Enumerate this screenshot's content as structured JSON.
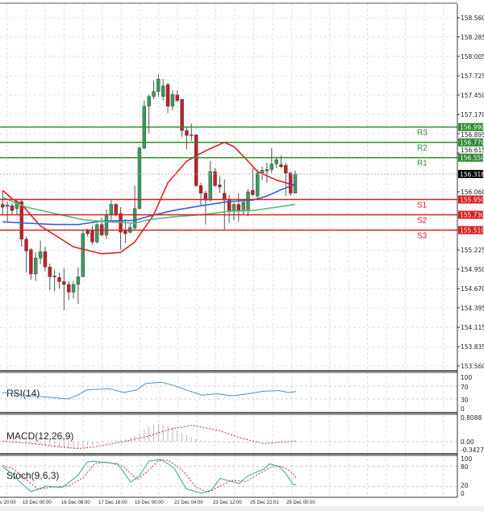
{
  "chart_data": [
    {
      "type": "candlestick",
      "price_axis": {
        "ylim": [
          153.56,
          158.56
        ],
        "ticks": [
          "158.560",
          "158.285",
          "158.005",
          "157.725",
          "157.450",
          "157.170",
          "156.895",
          "156.615",
          "156.060",
          "155.225",
          "154.950",
          "154.670",
          "154.395",
          "154.115",
          "153.835",
          "153.560"
        ]
      },
      "grid": true,
      "x_labels": [
        "c 20:00",
        "15 Dec 00:00",
        "16 Dec 08:00",
        "17 Dec 16:00",
        "19 Dec 00:00",
        "22 Dec 04:00",
        "23 Dec 12:00",
        "25 Dec 22:01",
        "29 Dec 00:00"
      ],
      "current_price": {
        "value": "156.316",
        "color": "#000000"
      },
      "levels": [
        {
          "label": "R3",
          "value": "156.990",
          "color": "#2e8b2e"
        },
        {
          "label": "R2",
          "value": "156.770",
          "color": "#2e8b2e"
        },
        {
          "label": "R1",
          "value": "156.550",
          "color": "#2e8b2e"
        },
        {
          "label": "S1",
          "value": "155.950",
          "color": "#d42020"
        },
        {
          "label": "S2",
          "value": "155.730",
          "color": "#d42020"
        },
        {
          "label": "S3",
          "value": "155.510",
          "color": "#d42020"
        }
      ],
      "candles": [
        [
          155.88,
          156.08,
          155.73,
          155.84
        ],
        [
          155.85,
          155.92,
          155.63,
          155.87
        ],
        [
          155.86,
          155.9,
          155.73,
          155.79
        ],
        [
          155.82,
          155.94,
          155.73,
          155.92
        ],
        [
          155.92,
          155.94,
          155.27,
          155.38
        ],
        [
          155.38,
          155.42,
          154.9,
          155.21
        ],
        [
          155.23,
          155.25,
          154.8,
          154.88
        ],
        [
          154.88,
          155.19,
          154.78,
          155.11
        ],
        [
          155.11,
          155.36,
          155.02,
          155.2
        ],
        [
          155.2,
          155.27,
          154.92,
          154.98
        ],
        [
          154.98,
          155.03,
          154.65,
          154.84
        ],
        [
          154.85,
          154.94,
          154.63,
          154.84
        ],
        [
          154.83,
          154.9,
          154.67,
          154.77
        ],
        [
          154.77,
          154.96,
          154.36,
          154.73
        ],
        [
          154.73,
          154.78,
          154.51,
          154.62
        ],
        [
          154.62,
          154.78,
          154.53,
          154.73
        ],
        [
          154.73,
          154.98,
          154.45,
          154.84
        ],
        [
          154.84,
          155.52,
          154.84,
          155.46
        ],
        [
          155.5,
          155.53,
          155.42,
          155.46
        ],
        [
          155.5,
          155.57,
          155.3,
          155.34
        ],
        [
          155.34,
          155.61,
          155.32,
          155.59
        ],
        [
          155.59,
          155.69,
          155.42,
          155.44
        ],
        [
          155.44,
          155.81,
          155.38,
          155.73
        ],
        [
          155.73,
          155.94,
          155.65,
          155.88
        ],
        [
          155.88,
          155.9,
          155.71,
          155.74
        ],
        [
          155.75,
          155.84,
          155.23,
          155.48
        ],
        [
          155.5,
          155.67,
          155.32,
          155.46
        ],
        [
          155.48,
          155.61,
          155.46,
          155.55
        ],
        [
          155.54,
          156.15,
          155.52,
          155.82
        ],
        [
          155.82,
          156.71,
          155.81,
          156.69
        ],
        [
          156.69,
          157.37,
          156.67,
          157.29
        ],
        [
          157.29,
          157.46,
          156.9,
          157.43
        ],
        [
          157.43,
          157.66,
          157.39,
          157.5
        ],
        [
          157.5,
          157.75,
          157.43,
          157.68
        ],
        [
          157.43,
          157.68,
          157.37,
          157.58
        ],
        [
          157.6,
          157.62,
          157.19,
          157.29
        ],
        [
          157.29,
          157.52,
          157.23,
          157.46
        ],
        [
          157.45,
          157.52,
          157.35,
          157.37
        ],
        [
          157.39,
          157.39,
          156.85,
          156.94
        ],
        [
          156.94,
          157.0,
          156.67,
          156.87
        ],
        [
          156.88,
          157.04,
          156.79,
          156.87
        ],
        [
          156.88,
          156.88,
          156.13,
          156.15
        ],
        [
          156.15,
          156.19,
          155.86,
          156.04
        ],
        [
          156.04,
          156.08,
          155.59,
          155.94
        ],
        [
          155.94,
          156.5,
          155.92,
          156.35
        ],
        [
          156.35,
          156.4,
          156.13,
          156.15
        ],
        [
          156.16,
          156.28,
          156.04,
          156.13
        ],
        [
          156.04,
          156.24,
          155.52,
          155.94
        ],
        [
          155.94,
          156.02,
          155.61,
          155.79
        ],
        [
          155.79,
          155.9,
          155.65,
          155.88
        ],
        [
          155.88,
          156.04,
          155.63,
          155.79
        ],
        [
          155.79,
          155.94,
          155.73,
          155.91
        ],
        [
          155.79,
          156.1,
          155.71,
          156.06
        ],
        [
          156.08,
          156.4,
          156.0,
          156.02
        ],
        [
          156.0,
          156.38,
          155.94,
          156.33
        ],
        [
          156.33,
          156.42,
          156.23,
          156.37
        ],
        [
          156.36,
          156.48,
          156.19,
          156.38
        ],
        [
          156.38,
          156.69,
          156.33,
          156.46
        ],
        [
          156.46,
          156.56,
          156.4,
          156.52
        ],
        [
          156.45,
          156.58,
          156.4,
          156.42
        ],
        [
          156.44,
          156.48,
          156.0,
          156.33
        ],
        [
          156.33,
          156.35,
          156.0,
          156.04
        ],
        [
          156.04,
          156.37,
          156.04,
          156.316
        ]
      ],
      "candle_format": [
        "open",
        "high",
        "low",
        "close"
      ],
      "colors": {
        "up": "#3c9a5f",
        "down": "#c0202a"
      },
      "moving_averages": [
        {
          "color": "#e02020",
          "points": [
            [
              0,
              156.08
            ],
            [
              2,
              155.96
            ],
            [
              4,
              155.88
            ],
            [
              8,
              155.57
            ],
            [
              15,
              155.27
            ],
            [
              21,
              155.17
            ],
            [
              25,
              155.19
            ],
            [
              28,
              155.34
            ],
            [
              32,
              155.73
            ],
            [
              35,
              156.19
            ],
            [
              39,
              156.5
            ],
            [
              43,
              156.65
            ],
            [
              47,
              156.77
            ],
            [
              49,
              156.71
            ],
            [
              52,
              156.5
            ],
            [
              54,
              156.35
            ],
            [
              58,
              156.23
            ],
            [
              62,
              156.15
            ]
          ]
        },
        {
          "color": "#3a5fcd",
          "points": [
            [
              0,
              155.63
            ],
            [
              5,
              155.61
            ],
            [
              11,
              155.59
            ],
            [
              16,
              155.59
            ],
            [
              21,
              155.64
            ],
            [
              28,
              155.65
            ],
            [
              31,
              155.71
            ],
            [
              36,
              155.79
            ],
            [
              42,
              155.86
            ],
            [
              48,
              155.92
            ],
            [
              53,
              155.94
            ],
            [
              56,
              156.0
            ],
            [
              59,
              156.09
            ],
            [
              62,
              156.17
            ]
          ]
        },
        {
          "color": "#5cb87a",
          "points": [
            [
              0,
              155.98
            ],
            [
              5,
              155.84
            ],
            [
              11,
              155.75
            ],
            [
              17,
              155.66
            ],
            [
              22,
              155.63
            ],
            [
              28,
              155.61
            ],
            [
              31,
              155.66
            ],
            [
              36,
              155.7
            ],
            [
              42,
              155.73
            ],
            [
              48,
              155.78
            ],
            [
              53,
              155.79
            ],
            [
              62,
              155.88
            ]
          ]
        }
      ]
    },
    {
      "type": "line",
      "title": "RSI(14)",
      "ticks": [
        "100",
        "70",
        "30",
        "0"
      ],
      "ylim": [
        0,
        100
      ],
      "color": "#4a90c0",
      "points": [
        [
          0,
          50
        ],
        [
          6,
          40
        ],
        [
          9.3,
          36
        ],
        [
          13.9,
          30
        ],
        [
          15.9,
          42
        ],
        [
          17.8,
          58
        ],
        [
          22.4,
          62
        ],
        [
          25.7,
          50
        ],
        [
          28.4,
          58
        ],
        [
          30.3,
          78
        ],
        [
          33.6,
          82
        ],
        [
          36.3,
          72
        ],
        [
          38.9,
          58
        ],
        [
          42.2,
          42
        ],
        [
          45.5,
          46
        ],
        [
          48.7,
          40
        ],
        [
          52,
          46
        ],
        [
          55.3,
          54
        ],
        [
          58.6,
          56
        ],
        [
          60.6,
          50
        ],
        [
          62.2,
          53
        ]
      ]
    },
    {
      "type": "bar",
      "title": "MACD(12,26,9)",
      "ticks": [
        "0.8088",
        "0.00",
        "-0.3427"
      ],
      "ylim": [
        -0.3427,
        0.8088
      ],
      "histogram": [
        0,
        0,
        0,
        0,
        0,
        -0.02,
        -0.05,
        -0.08,
        -0.1,
        -0.12,
        -0.15,
        -0.18,
        -0.2,
        -0.22,
        -0.24,
        -0.24,
        -0.22,
        -0.18,
        -0.14,
        -0.1,
        -0.06,
        -0.03,
        0,
        0.02,
        0.04,
        0.06,
        0.08,
        0.12,
        0.2,
        0.3,
        0.42,
        0.5,
        0.56,
        0.6,
        0.58,
        0.54,
        0.46,
        0.38,
        0.3,
        0.22,
        0.16,
        0.1,
        0.06,
        0.03,
        0.01,
        0,
        -0.02,
        -0.03,
        -0.04,
        -0.04,
        -0.03,
        -0.02,
        -0.02,
        -0.01,
        0,
        0,
        0,
        0,
        0,
        0,
        0,
        0,
        0
      ],
      "signal": [
        [
          0,
          0.02
        ],
        [
          5.9,
          -0.06
        ],
        [
          12.7,
          -0.18
        ],
        [
          15.9,
          -0.23
        ],
        [
          19.2,
          -0.18
        ],
        [
          25.7,
          0
        ],
        [
          31,
          0.19
        ],
        [
          35.6,
          0.43
        ],
        [
          40.2,
          0.55
        ],
        [
          45.5,
          0.39
        ],
        [
          50.7,
          0.11
        ],
        [
          55.3,
          -0.06
        ],
        [
          58.6,
          -0.02
        ],
        [
          62.2,
          0.02
        ]
      ],
      "colors": {
        "histogram": "#b8b8b8",
        "signal": "#c03030"
      }
    },
    {
      "type": "line",
      "title": "Stoch(9,6,3)",
      "ticks": [
        "100",
        "80",
        "20",
        "0"
      ],
      "ylim": [
        0,
        100
      ],
      "main": [
        [
          0,
          79
        ],
        [
          2.1,
          56
        ],
        [
          4,
          29
        ],
        [
          6,
          5
        ],
        [
          9.3,
          21
        ],
        [
          12.6,
          17
        ],
        [
          15.9,
          52
        ],
        [
          17.8,
          91
        ],
        [
          19.2,
          95
        ],
        [
          24.4,
          87
        ],
        [
          27.1,
          33
        ],
        [
          29,
          52
        ],
        [
          31,
          95
        ],
        [
          33.6,
          100
        ],
        [
          36.3,
          75
        ],
        [
          38.9,
          13
        ],
        [
          42.2,
          0
        ],
        [
          44.2,
          9
        ],
        [
          46.1,
          44
        ],
        [
          50.1,
          29
        ],
        [
          52,
          52
        ],
        [
          55.3,
          71
        ],
        [
          56.6,
          87
        ],
        [
          58.6,
          79
        ],
        [
          59.9,
          60
        ],
        [
          61.6,
          25
        ],
        [
          62.2,
          25
        ]
      ],
      "signal": [
        [
          0,
          82
        ],
        [
          2.5,
          70
        ],
        [
          5,
          40
        ],
        [
          7.5,
          12
        ],
        [
          10.5,
          18
        ],
        [
          14,
          22
        ],
        [
          17,
          45
        ],
        [
          19.5,
          88
        ],
        [
          22,
          92
        ],
        [
          25.5,
          80
        ],
        [
          28.5,
          40
        ],
        [
          30.5,
          62
        ],
        [
          33,
          96
        ],
        [
          35,
          98
        ],
        [
          38,
          70
        ],
        [
          41,
          18
        ],
        [
          43.5,
          3
        ],
        [
          46,
          20
        ],
        [
          48.5,
          38
        ],
        [
          51.5,
          35
        ],
        [
          54,
          55
        ],
        [
          57,
          78
        ],
        [
          59,
          80
        ],
        [
          61,
          65
        ],
        [
          62.2,
          45
        ]
      ],
      "colors": {
        "main": "#3aa0a0",
        "signal": "#c03030"
      }
    }
  ]
}
